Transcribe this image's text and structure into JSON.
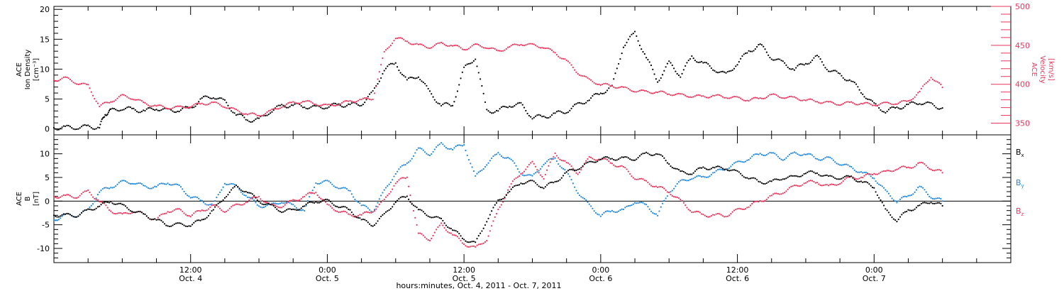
{
  "chart_data": [
    {
      "type": "scatter",
      "panel": "top",
      "ylabel_left": [
        "ACE",
        "Ion Density",
        "[cm⁻³]"
      ],
      "ylabel_right": [
        "ACE",
        "Velocity",
        "[km/s]"
      ],
      "y_left_ticks": [
        "0",
        "5",
        "10",
        "15",
        "20"
      ],
      "ylim_left": [
        -1,
        20.5
      ],
      "y_right_ticks": [
        "350",
        "400",
        "450",
        "500"
      ],
      "ylim_right": [
        335,
        500
      ],
      "colors": {
        "density": "#000000",
        "velocity": "#e8365d"
      },
      "series": [
        {
          "name": "Ion Density",
          "axis": "left",
          "color": "#000000",
          "x": [
            0,
            1,
            2,
            3,
            4,
            4.5,
            5,
            6,
            7,
            8,
            9,
            10,
            11,
            12,
            13,
            14,
            15,
            16,
            17,
            18,
            19,
            20,
            21,
            22,
            23,
            24,
            25,
            26,
            27,
            28,
            29,
            30,
            31,
            32,
            33,
            34,
            35,
            36,
            37,
            38,
            39,
            40,
            41,
            42,
            43,
            44,
            45,
            46,
            47,
            48,
            49,
            50,
            51,
            52,
            53,
            54,
            55,
            56,
            57,
            58,
            59,
            60,
            61,
            62,
            63,
            64,
            65,
            66,
            67,
            68,
            69,
            70,
            71,
            72,
            73,
            74,
            75,
            76,
            77,
            78
          ],
          "y": [
            0.2,
            0.2,
            0.3,
            0.3,
            0.3,
            2.5,
            3,
            3.5,
            3.2,
            3,
            3.5,
            3,
            3.2,
            3.5,
            5,
            5.5,
            4.5,
            2.5,
            1.5,
            1.5,
            3,
            3.8,
            4,
            3.8,
            3.5,
            3.8,
            4,
            4,
            4.2,
            6,
            10,
            11,
            8,
            9,
            6,
            4,
            4,
            10,
            12,
            3,
            3,
            4,
            4,
            2,
            2,
            2.5,
            3,
            4,
            5,
            6,
            7,
            14,
            16,
            12,
            8,
            11,
            9,
            12,
            11,
            10,
            9,
            11,
            13,
            14,
            12,
            11,
            10,
            11,
            12,
            10,
            9,
            8,
            6,
            4,
            3,
            3.5,
            4,
            4.5,
            4,
            3.5
          ]
        },
        {
          "name": "Velocity",
          "axis": "right",
          "color": "#e8365d",
          "x": [
            0,
            1,
            2,
            3,
            4,
            5,
            6,
            7,
            8,
            9,
            10,
            11,
            12,
            13,
            14,
            15,
            16,
            17,
            18,
            19,
            20,
            21,
            22,
            23,
            24,
            25,
            26,
            27,
            28,
            29,
            30,
            31,
            32,
            33,
            34,
            35,
            36,
            37,
            38,
            39,
            40,
            41,
            42,
            43,
            44,
            45,
            46,
            47,
            48,
            49,
            50,
            51,
            52,
            53,
            54,
            55,
            56,
            57,
            58,
            59,
            60,
            61,
            62,
            63,
            64,
            65,
            66,
            67,
            68,
            69,
            70,
            71,
            72,
            73,
            74,
            75,
            76,
            77,
            78
          ],
          "y": [
            405,
            408,
            402,
            398,
            372,
            378,
            385,
            382,
            375,
            372,
            370,
            370,
            372,
            375,
            376,
            372,
            366,
            362,
            360,
            365,
            372,
            376,
            378,
            375,
            372,
            375,
            378,
            380,
            382,
            440,
            460,
            455,
            450,
            448,
            452,
            450,
            445,
            450,
            448,
            442,
            448,
            452,
            450,
            448,
            440,
            430,
            415,
            405,
            400,
            398,
            395,
            392,
            390,
            390,
            388,
            386,
            385,
            384,
            385,
            384,
            382,
            380,
            382,
            386,
            384,
            382,
            380,
            378,
            376,
            375,
            376,
            375,
            374,
            375,
            376,
            378,
            390,
            410,
            396
          ]
        }
      ]
    },
    {
      "type": "scatter",
      "panel": "bottom",
      "ylabel_left": [
        "ACE",
        "B",
        "[nT]"
      ],
      "y_ticks": [
        "-10",
        "-5",
        "0",
        "5",
        "10"
      ],
      "ylim": [
        -13,
        14
      ],
      "zero_line": true,
      "legend": {
        "placement": "right",
        "entries": [
          "Bx",
          "By",
          "Bz"
        ]
      },
      "x_ticks": [
        {
          "x": 12,
          "time": "12:00",
          "date": "Oct. 4"
        },
        {
          "x": 24,
          "time": "0:00",
          "date": "Oct. 5"
        },
        {
          "x": 36,
          "time": "12:00",
          "date": "Oct. 5"
        },
        {
          "x": 48,
          "time": "0:00",
          "date": "Oct. 6"
        },
        {
          "x": 60,
          "time": "12:00",
          "date": "Oct. 6"
        },
        {
          "x": 72,
          "time": "0:00",
          "date": "Oct. 7"
        }
      ],
      "xlim": [
        0,
        84
      ],
      "xlabel": "hours:minutes, Oct.  4, 2011 - Oct.  7, 2011",
      "series": [
        {
          "name": "Bx",
          "label_main": "B",
          "label_sub": "x",
          "color": "#000000",
          "x": [
            0,
            1,
            2,
            3,
            4,
            5,
            6,
            7,
            8,
            9,
            10,
            11,
            12,
            13,
            14,
            15,
            16,
            17,
            18,
            19,
            20,
            21,
            22,
            23,
            24,
            25,
            26,
            27,
            28,
            29,
            30,
            31,
            32,
            33,
            34,
            35,
            36,
            37,
            38,
            39,
            40,
            41,
            42,
            43,
            44,
            45,
            46,
            47,
            48,
            49,
            50,
            51,
            52,
            53,
            54,
            55,
            56,
            57,
            58,
            59,
            60,
            61,
            62,
            63,
            64,
            65,
            66,
            67,
            68,
            69,
            70,
            71,
            72,
            73,
            74,
            75,
            76,
            77,
            78
          ],
          "y": [
            -3,
            -3,
            -3,
            -2,
            -1,
            0,
            -1,
            -2,
            -3,
            -4,
            -5,
            -5,
            -5,
            -4,
            -2,
            1,
            3,
            2,
            0,
            -1,
            -2,
            -2,
            -1,
            0,
            0,
            -1,
            -2,
            -4,
            -5,
            -3,
            0,
            1,
            -2,
            -3,
            -4,
            -6,
            -8,
            -9,
            -4,
            0,
            2,
            4,
            4,
            3,
            4,
            6,
            7,
            8,
            9,
            9,
            9,
            9,
            10,
            10,
            8,
            6,
            6,
            7,
            7,
            7,
            6,
            5,
            4,
            4,
            5,
            5,
            6,
            6,
            5,
            5,
            5,
            4,
            3,
            -2,
            -4,
            -2,
            -1,
            0,
            -1
          ]
        },
        {
          "name": "By",
          "label_main": "B",
          "label_sub": "y",
          "color": "#1e87dc",
          "x": [
            0,
            1,
            2,
            3,
            4,
            5,
            6,
            7,
            8,
            9,
            10,
            11,
            12,
            13,
            14,
            15,
            16,
            17,
            18,
            19,
            20,
            21,
            22,
            23,
            24,
            25,
            26,
            27,
            28,
            29,
            30,
            31,
            32,
            33,
            34,
            35,
            36,
            37,
            38,
            39,
            40,
            41,
            42,
            43,
            44,
            45,
            46,
            47,
            48,
            49,
            50,
            51,
            52,
            53,
            54,
            55,
            56,
            57,
            58,
            59,
            60,
            61,
            62,
            63,
            64,
            65,
            66,
            67,
            68,
            69,
            70,
            71,
            72,
            73,
            74,
            75,
            76,
            77,
            78
          ],
          "y": [
            -4,
            -3,
            -3,
            -2,
            2,
            3,
            4,
            4,
            3,
            3,
            4,
            3,
            1,
            0,
            -1,
            4,
            3,
            1,
            -1,
            -1,
            0,
            -1,
            -2,
            4,
            4,
            3,
            2,
            -1,
            -2,
            2,
            6,
            8,
            11,
            10,
            12,
            11,
            12,
            5,
            8,
            10,
            9,
            6,
            5,
            8,
            9,
            6,
            2,
            -1,
            -3,
            -2,
            -2,
            0,
            -1,
            -3,
            2,
            4,
            5,
            5,
            6,
            7,
            8,
            9,
            10,
            10,
            9,
            10,
            10,
            9,
            9,
            8,
            7,
            6,
            5,
            2,
            0,
            1,
            3,
            1,
            0
          ]
        },
        {
          "name": "Bz",
          "label_main": "B",
          "label_sub": "z",
          "color": "#e8365d",
          "x": [
            0,
            1,
            2,
            3,
            4,
            5,
            6,
            7,
            8,
            9,
            10,
            11,
            12,
            13,
            14,
            15,
            16,
            17,
            18,
            19,
            20,
            21,
            22,
            23,
            24,
            25,
            26,
            27,
            28,
            29,
            30,
            31,
            32,
            33,
            34,
            35,
            36,
            37,
            38,
            39,
            40,
            41,
            42,
            43,
            44,
            45,
            46,
            47,
            48,
            49,
            50,
            51,
            52,
            53,
            54,
            55,
            56,
            57,
            58,
            59,
            60,
            61,
            62,
            63,
            64,
            65,
            66,
            67,
            68,
            69,
            70,
            71,
            72,
            73,
            74,
            75,
            76,
            77,
            78
          ],
          "y": [
            1,
            1,
            1,
            2,
            0,
            -2,
            -3,
            -2,
            -3,
            -4,
            -2,
            -2,
            -3,
            -2,
            -1,
            -2,
            -1,
            0,
            1,
            -1,
            -1,
            0,
            1,
            2,
            -1,
            -2,
            -3,
            -3,
            -2,
            0,
            4,
            5,
            -7,
            -8,
            -5,
            -7,
            -9,
            -10,
            -8,
            -2,
            3,
            6,
            8,
            5,
            10,
            8,
            6,
            9,
            9,
            8,
            7,
            5,
            4,
            3,
            2,
            0,
            -2,
            -3,
            -3,
            -3,
            -2,
            -1,
            0,
            1,
            2,
            3,
            4,
            4,
            3,
            4,
            5,
            5,
            6,
            6,
            7,
            7,
            8,
            7,
            6
          ]
        }
      ]
    }
  ]
}
